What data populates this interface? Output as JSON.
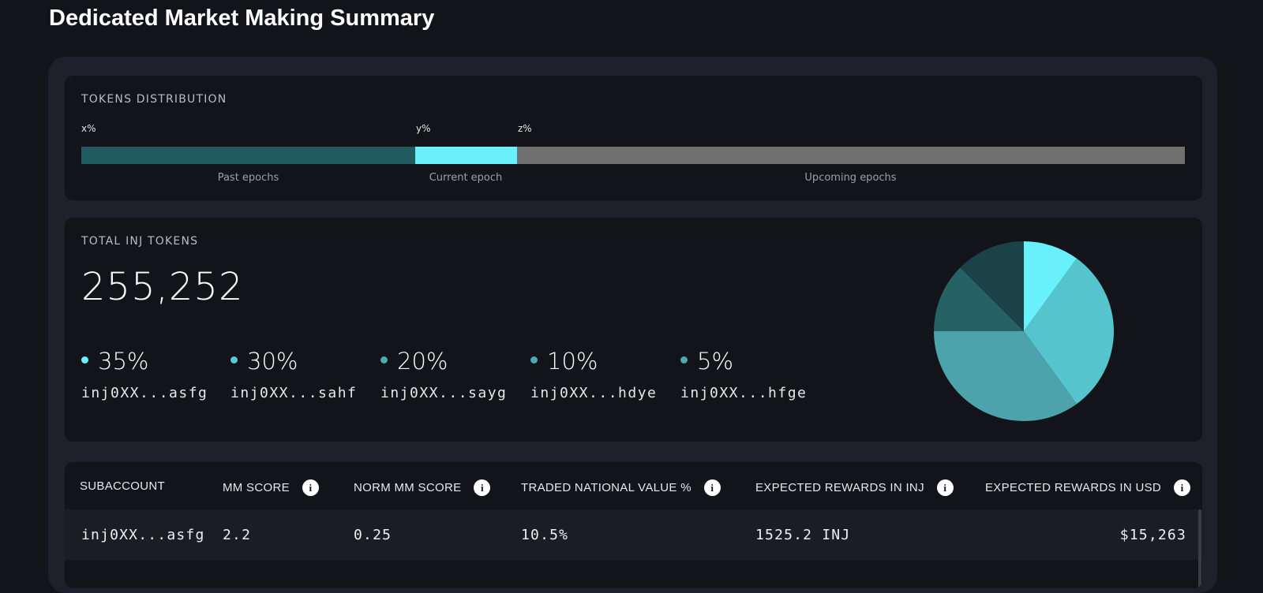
{
  "page": {
    "title": "Dedicated Market Making Summary"
  },
  "distribution": {
    "title": "TOKENS DISTRIBUTION",
    "markers": [
      "x%",
      "y%",
      "z%"
    ],
    "segments": [
      {
        "label": "Past epochs",
        "fraction": 0.3027,
        "color": "#215a5f"
      },
      {
        "label": "Current epoch",
        "fraction": 0.0918,
        "color": "#68f0fb"
      },
      {
        "label": "Upcoming epochs",
        "fraction": 0.6055,
        "color": "#707070"
      }
    ]
  },
  "total_tokens": {
    "title": "TOTAL INJ TOKENS",
    "value": "255,252",
    "legend": [
      {
        "pct": "35%",
        "address": "inj0XX...asfg",
        "color": "#68f0fb"
      },
      {
        "pct": "30%",
        "address": "inj0XX...sahf",
        "color": "#5bc9d4"
      },
      {
        "pct": "20%",
        "address": "inj0XX...sayg",
        "color": "#4aaab2"
      },
      {
        "pct": "10%",
        "address": "inj0XX...hdye",
        "color": "#4aaab2"
      },
      {
        "pct": "5%",
        "address": "inj0XX...hfge",
        "color": "#4aaab2"
      }
    ]
  },
  "chart_data": {
    "type": "pie",
    "slices": [
      {
        "value": 10,
        "color": "#68f0fb"
      },
      {
        "value": 30,
        "color": "#56c4cd"
      },
      {
        "value": 35,
        "color": "#4ca3ab"
      },
      {
        "value": 12.5,
        "color": "#256165"
      },
      {
        "value": 12.5,
        "color": "#1b4247"
      }
    ]
  },
  "table": {
    "headers": [
      {
        "label": "SUBACCOUNT",
        "info": false
      },
      {
        "label": "MM SCORE",
        "info": true
      },
      {
        "label": "NORM MM SCORE",
        "info": true
      },
      {
        "label": "TRADED NATIONAL VALUE %",
        "info": true
      },
      {
        "label": "EXPECTED REWARDS IN INJ",
        "info": true
      },
      {
        "label": "EXPECTED REWARDS IN USD",
        "info": true
      }
    ],
    "rows": [
      {
        "subaccount": "inj0XX...asfg",
        "mm_score": "2.2",
        "norm_mm_score": "0.25",
        "traded_value": "10.5%",
        "rewards_inj": "1525.2 INJ",
        "rewards_usd": "$15,263"
      }
    ],
    "info_glyph": "i"
  }
}
